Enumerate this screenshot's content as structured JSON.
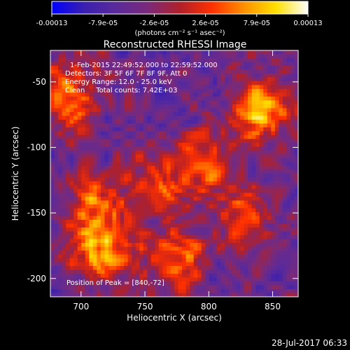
{
  "colorbar": {
    "ticks": [
      "-0.00013",
      "-7.9e-05",
      "-2.6e-05",
      "2.6e-05",
      "7.9e-05",
      "0.00013"
    ],
    "unit_label": "(photons cm⁻² s⁻¹ asec⁻²)",
    "gradient": [
      "#0000ff",
      "#3a1fb0",
      "#5a2a9a",
      "#7a2a7a",
      "#b0202a",
      "#ff3000",
      "#ff9000",
      "#ffe000",
      "#ffffff"
    ]
  },
  "plot": {
    "title": "Reconstructed RHESSI Image",
    "xlabel": "Heliocentric X (arcsec)",
    "ylabel": "Heliocentric Y (arcsec)",
    "x_ticks": [
      "700",
      "750",
      "800",
      "850"
    ],
    "y_ticks": [
      "-50",
      "-100",
      "-150",
      "-200"
    ],
    "xlim": [
      676,
      870
    ],
    "ylim": [
      -214,
      -26
    ]
  },
  "annotations": {
    "time_range": "1-Feb-2015 22:49:52.000 to 22:59:52.000",
    "detectors": "Detectors: 3F 5F 6F 7F 8F 9F, Att 0",
    "energy": "Energy Range: 12.0 - 25.0 keV",
    "clean": "Clean     Total counts: 7.42E+03",
    "peak": "Position of Peak = [840,-72]"
  },
  "footer": {
    "timestamp": "28-Jul-2017 06:33"
  },
  "chart_data": {
    "type": "heatmap",
    "title": "Reconstructed RHESSI Image",
    "xlabel": "Heliocentric X (arcsec)",
    "ylabel": "Heliocentric Y (arcsec)",
    "xlim": [
      676,
      870
    ],
    "ylim": [
      -214,
      -26
    ],
    "color_range": [
      -0.00013,
      0.00013
    ],
    "peak": [
      840,
      -72
    ],
    "hotspots": [
      {
        "x": 840,
        "y": -72,
        "strength": 1.0
      },
      {
        "x": 718,
        "y": -178,
        "strength": 0.95
      },
      {
        "x": 690,
        "y": -60,
        "strength": 0.7
      },
      {
        "x": 795,
        "y": -110,
        "strength": 0.7
      },
      {
        "x": 775,
        "y": -185,
        "strength": 0.65
      },
      {
        "x": 710,
        "y": -140,
        "strength": 0.6
      },
      {
        "x": 760,
        "y": -130,
        "strength": 0.55
      },
      {
        "x": 825,
        "y": -155,
        "strength": 0.5
      }
    ]
  }
}
